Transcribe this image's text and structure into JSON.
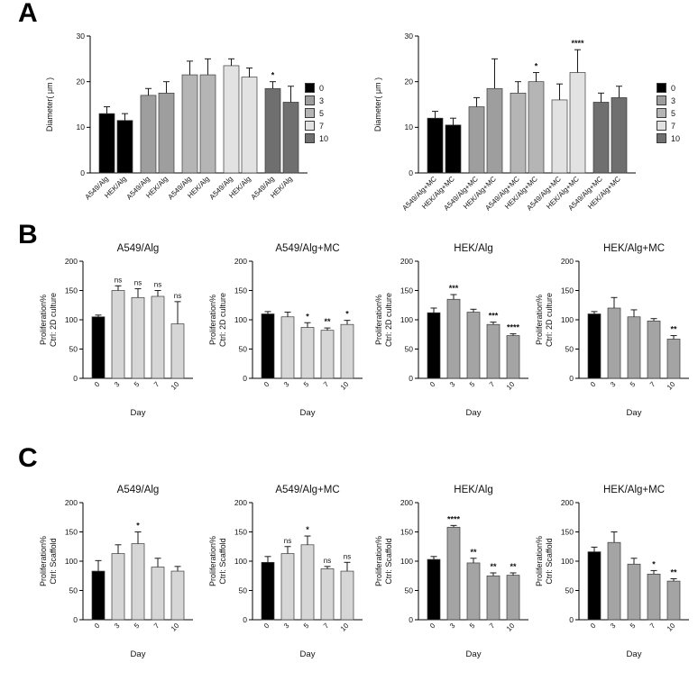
{
  "panels": {
    "a": {
      "label": "A"
    },
    "b": {
      "label": "B"
    },
    "c": {
      "label": "C"
    }
  },
  "chart_data": [
    {
      "id": "A-left",
      "type": "bar",
      "panel": "A",
      "title": "",
      "ylabel": "Diameter( μm )",
      "ylim": [
        0,
        30
      ],
      "yticks": [
        0,
        10,
        20,
        30
      ],
      "group_size": 2,
      "categories": [
        "A549/Alg",
        "HEK/Alg",
        "A549/Alg",
        "HEK/Alg",
        "A549/Alg",
        "HEK/Alg",
        "A549/Alg",
        "HEK/Alg",
        "A549/Alg",
        "HEK/Alg"
      ],
      "values": [
        13,
        11.5,
        17,
        17.5,
        21.5,
        21.5,
        23.5,
        21,
        18.5,
        15.5
      ],
      "errors": [
        1.5,
        1.5,
        1.5,
        2.5,
        3,
        3.5,
        1.5,
        2,
        1.5,
        3.5
      ],
      "annotations": [
        "",
        "",
        "",
        "",
        "",
        "",
        "",
        "",
        "*",
        ""
      ],
      "colors": [
        "#000000",
        "#000000",
        "#9e9e9e",
        "#9e9e9e",
        "#b5b5b5",
        "#b5b5b5",
        "#e2e2e2",
        "#e2e2e2",
        "#6f6f6f",
        "#6f6f6f"
      ],
      "legend": {
        "labels": [
          "0",
          "3",
          "5",
          "7",
          "10"
        ],
        "colors": [
          "#000000",
          "#9e9e9e",
          "#b5b5b5",
          "#e2e2e2",
          "#6f6f6f"
        ]
      }
    },
    {
      "id": "A-right",
      "type": "bar",
      "panel": "A",
      "title": "",
      "ylabel": "Diameter( μm )",
      "ylim": [
        0,
        30
      ],
      "yticks": [
        0,
        10,
        20,
        30
      ],
      "group_size": 2,
      "categories": [
        "A549/Alg+MC",
        "HEK/Alg+MC",
        "A549/Alg+MC",
        "HEK/Alg+MC",
        "A549/Alg+MC",
        "HEK/Alg+MC",
        "A549/Alg+MC",
        "HEK/Alg+MC",
        "A549/Alg+MC",
        "HEK/Alg+MC"
      ],
      "values": [
        12,
        10.5,
        14.5,
        18.5,
        17.5,
        20,
        16,
        22,
        15.5,
        16.5
      ],
      "errors": [
        1.5,
        1.5,
        2,
        6.5,
        2.5,
        2,
        3.5,
        5,
        2,
        2.5
      ],
      "annotations": [
        "",
        "",
        "",
        "",
        "",
        "*",
        "",
        "****",
        "",
        ""
      ],
      "colors": [
        "#000000",
        "#000000",
        "#9e9e9e",
        "#9e9e9e",
        "#b5b5b5",
        "#b5b5b5",
        "#e2e2e2",
        "#e2e2e2",
        "#6f6f6f",
        "#6f6f6f"
      ],
      "legend": {
        "labels": [
          "0",
          "3",
          "5",
          "7",
          "10"
        ],
        "colors": [
          "#000000",
          "#9e9e9e",
          "#b5b5b5",
          "#e2e2e2",
          "#6f6f6f"
        ]
      }
    },
    {
      "id": "B-1",
      "type": "bar",
      "panel": "B",
      "title": "A549/Alg",
      "ylabel_lines": [
        "Proliferation%",
        "Ctrl: 2D culture"
      ],
      "xlabel": "Day",
      "ylim": [
        0,
        200
      ],
      "yticks": [
        0,
        50,
        100,
        150,
        200
      ],
      "categories": [
        "0",
        "3",
        "5",
        "7",
        "10"
      ],
      "values": [
        105,
        150,
        138,
        140,
        93
      ],
      "errors": [
        3,
        8,
        15,
        10,
        38
      ],
      "annotations": [
        "",
        "ns",
        "ns",
        "ns",
        "ns"
      ],
      "colors": [
        "#000000",
        "#d6d6d6",
        "#d6d6d6",
        "#d6d6d6",
        "#d6d6d6"
      ]
    },
    {
      "id": "B-2",
      "type": "bar",
      "panel": "B",
      "title": "A549/Alg+MC",
      "ylabel_lines": [
        "Proliferation%",
        "Ctrl: 2D culture"
      ],
      "xlabel": "Day",
      "ylim": [
        0,
        200
      ],
      "yticks": [
        0,
        50,
        100,
        150,
        200
      ],
      "categories": [
        "0",
        "3",
        "5",
        "7",
        "10"
      ],
      "values": [
        110,
        105,
        87,
        82,
        92
      ],
      "errors": [
        4,
        8,
        8,
        4,
        7
      ],
      "annotations": [
        "",
        "",
        "*",
        "**",
        "*"
      ],
      "colors": [
        "#000000",
        "#d6d6d6",
        "#d6d6d6",
        "#d6d6d6",
        "#d6d6d6"
      ]
    },
    {
      "id": "B-3",
      "type": "bar",
      "panel": "B",
      "title": "HEK/Alg",
      "ylabel_lines": [
        "Proliferation%",
        "Ctrl: 2D culture"
      ],
      "xlabel": "Day",
      "ylim": [
        0,
        200
      ],
      "yticks": [
        0,
        50,
        100,
        150,
        200
      ],
      "categories": [
        "0",
        "3",
        "5",
        "7",
        "10"
      ],
      "values": [
        112,
        135,
        113,
        92,
        73
      ],
      "errors": [
        8,
        8,
        5,
        4,
        3
      ],
      "annotations": [
        "",
        "***",
        "",
        "***",
        "****"
      ],
      "colors": [
        "#000000",
        "#a4a4a4",
        "#a4a4a4",
        "#a4a4a4",
        "#a4a4a4"
      ]
    },
    {
      "id": "B-4",
      "type": "bar",
      "panel": "B",
      "title": "HEK/Alg+MC",
      "ylabel_lines": [
        "Proliferation%",
        "Ctrl: 2D culture"
      ],
      "xlabel": "Day",
      "ylim": [
        0,
        200
      ],
      "yticks": [
        0,
        50,
        100,
        150,
        200
      ],
      "categories": [
        "0",
        "3",
        "5",
        "7",
        "10"
      ],
      "values": [
        110,
        120,
        105,
        98,
        67
      ],
      "errors": [
        4,
        18,
        12,
        4,
        6
      ],
      "annotations": [
        "",
        "",
        "",
        "",
        "**"
      ],
      "colors": [
        "#000000",
        "#a4a4a4",
        "#a4a4a4",
        "#a4a4a4",
        "#a4a4a4"
      ]
    },
    {
      "id": "C-1",
      "type": "bar",
      "panel": "C",
      "title": "A549/Alg",
      "ylabel_lines": [
        "Proliferation%",
        "Ctrl: Scaffold"
      ],
      "xlabel": "Day",
      "ylim": [
        0,
        200
      ],
      "yticks": [
        0,
        50,
        100,
        150,
        200
      ],
      "categories": [
        "0",
        "3",
        "5",
        "7",
        "10"
      ],
      "values": [
        83,
        113,
        130,
        90,
        83
      ],
      "errors": [
        18,
        15,
        20,
        15,
        8
      ],
      "annotations": [
        "",
        "",
        "*",
        "",
        ""
      ],
      "colors": [
        "#000000",
        "#d6d6d6",
        "#d6d6d6",
        "#d6d6d6",
        "#d6d6d6"
      ]
    },
    {
      "id": "C-2",
      "type": "bar",
      "panel": "C",
      "title": "A549/Alg+MC",
      "ylabel_lines": [
        "Proliferation%",
        "Ctrl: Scaffold"
      ],
      "xlabel": "Day",
      "ylim": [
        0,
        200
      ],
      "yticks": [
        0,
        50,
        100,
        150,
        200
      ],
      "categories": [
        "0",
        "3",
        "5",
        "7",
        "10"
      ],
      "values": [
        98,
        113,
        128,
        87,
        83
      ],
      "errors": [
        10,
        12,
        15,
        4,
        15
      ],
      "annotations": [
        "",
        "ns",
        "*",
        "ns",
        "ns"
      ],
      "colors": [
        "#000000",
        "#d6d6d6",
        "#d6d6d6",
        "#d6d6d6",
        "#d6d6d6"
      ]
    },
    {
      "id": "C-3",
      "type": "bar",
      "panel": "C",
      "title": "HEK/Alg",
      "ylabel_lines": [
        "Proliferation%",
        "Ctrl: Scaffold"
      ],
      "xlabel": "Day",
      "ylim": [
        0,
        200
      ],
      "yticks": [
        0,
        50,
        100,
        150,
        200
      ],
      "categories": [
        "0",
        "3",
        "5",
        "7",
        "10"
      ],
      "values": [
        103,
        158,
        97,
        75,
        76
      ],
      "errors": [
        5,
        3,
        8,
        5,
        4
      ],
      "annotations": [
        "",
        "****",
        "**",
        "**",
        "**"
      ],
      "colors": [
        "#000000",
        "#a4a4a4",
        "#a4a4a4",
        "#a4a4a4",
        "#a4a4a4"
      ]
    },
    {
      "id": "C-4",
      "type": "bar",
      "panel": "C",
      "title": "HEK/Alg+MC",
      "ylabel_lines": [
        "Proliferation%",
        "Ctrl: Scaffold"
      ],
      "xlabel": "Day",
      "ylim": [
        0,
        200
      ],
      "yticks": [
        0,
        50,
        100,
        150,
        200
      ],
      "categories": [
        "0",
        "3",
        "5",
        "7",
        "10"
      ],
      "values": [
        116,
        132,
        95,
        78,
        66
      ],
      "errors": [
        8,
        18,
        10,
        6,
        4
      ],
      "annotations": [
        "",
        "",
        "",
        "*",
        "**"
      ],
      "colors": [
        "#000000",
        "#a4a4a4",
        "#a4a4a4",
        "#a4a4a4",
        "#a4a4a4"
      ]
    }
  ]
}
